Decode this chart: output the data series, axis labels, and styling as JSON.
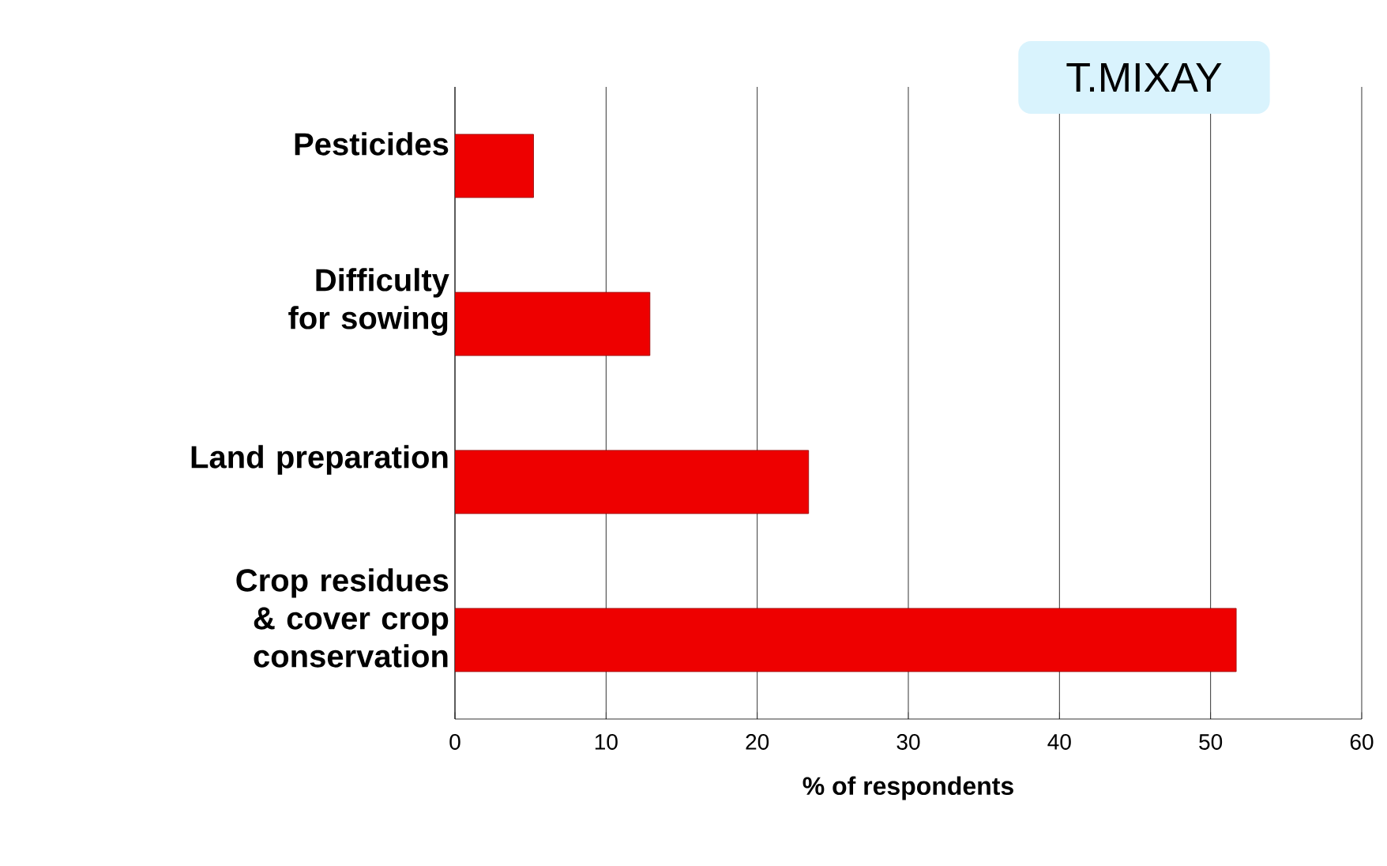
{
  "chart_data": {
    "type": "bar",
    "orientation": "horizontal",
    "title": "T.MIXAY",
    "xlabel": "% of respondents",
    "categories": [
      "Pesticides",
      "Difficulty for sowing",
      "Land preparation",
      "Crop residues & cover crop conservation"
    ],
    "values": [
      5.2,
      12.9,
      23.4,
      51.7
    ],
    "color": "#ee0000",
    "xlim": [
      0,
      60
    ],
    "xticks": [
      0,
      10,
      20,
      30,
      40,
      50,
      60
    ],
    "grid": "x"
  }
}
